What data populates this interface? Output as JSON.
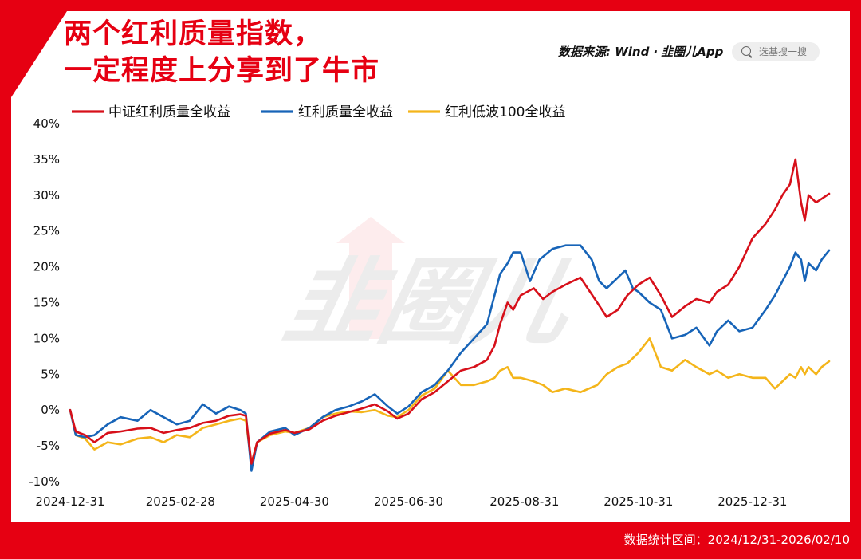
{
  "title_lines": [
    "两个红利质量指数，",
    "一定程度上分享到了牛市"
  ],
  "source": {
    "label": "数据来源: Wind ·",
    "brand": "韭圈儿App"
  },
  "search": {
    "placeholder": "选基搜一搜",
    "icon": "search-icon"
  },
  "watermark": "韭圈儿",
  "footer": "数据统计区间：2024/12/31-2026/02/10",
  "chart_data": {
    "type": "line",
    "ylim": [
      -10,
      40
    ],
    "yticks": [
      -10,
      -5,
      0,
      5,
      10,
      15,
      20,
      25,
      30,
      35,
      40
    ],
    "ytick_labels": [
      "-10%",
      "-5%",
      "0%",
      "5%",
      "10%",
      "15%",
      "20%",
      "25%",
      "30%",
      "35%",
      "40%"
    ],
    "xlim": [
      "2024-12-31",
      "2026-02-10"
    ],
    "xticks": [
      "2024-12-31",
      "2025-02-28",
      "2025-04-30",
      "2025-06-30",
      "2025-08-31",
      "2025-10-31",
      "2025-12-31"
    ],
    "grid": false,
    "legend_position": "top-left",
    "series": [
      {
        "name": "中证红利质量全收益",
        "color": "#d7101a",
        "points": [
          [
            "2024-12-31",
            0
          ],
          [
            "2025-01-03",
            -3
          ],
          [
            "2025-01-08",
            -3.5
          ],
          [
            "2025-01-13",
            -4.5
          ],
          [
            "2025-01-20",
            -3.2
          ],
          [
            "2025-01-27",
            -3
          ],
          [
            "2025-02-05",
            -2.6
          ],
          [
            "2025-02-12",
            -2.5
          ],
          [
            "2025-02-19",
            -3.2
          ],
          [
            "2025-02-26",
            -2.8
          ],
          [
            "2025-03-05",
            -2.5
          ],
          [
            "2025-03-12",
            -1.8
          ],
          [
            "2025-03-19",
            -1.5
          ],
          [
            "2025-03-26",
            -0.8
          ],
          [
            "2025-04-01",
            -0.6
          ],
          [
            "2025-04-04",
            -0.8
          ],
          [
            "2025-04-07",
            -7.5
          ],
          [
            "2025-04-10",
            -4.5
          ],
          [
            "2025-04-17",
            -3.3
          ],
          [
            "2025-04-25",
            -2.8
          ],
          [
            "2025-04-30",
            -3.2
          ],
          [
            "2025-05-08",
            -2.7
          ],
          [
            "2025-05-15",
            -1.5
          ],
          [
            "2025-05-22",
            -0.8
          ],
          [
            "2025-05-29",
            -0.3
          ],
          [
            "2025-06-05",
            0.2
          ],
          [
            "2025-06-12",
            0.8
          ],
          [
            "2025-06-19",
            -0.2
          ],
          [
            "2025-06-24",
            -1.2
          ],
          [
            "2025-06-30",
            -0.5
          ],
          [
            "2025-07-07",
            1.5
          ],
          [
            "2025-07-14",
            2.5
          ],
          [
            "2025-07-21",
            4.0
          ],
          [
            "2025-07-28",
            5.5
          ],
          [
            "2025-08-04",
            6.0
          ],
          [
            "2025-08-11",
            7.0
          ],
          [
            "2025-08-15",
            9.0
          ],
          [
            "2025-08-18",
            12
          ],
          [
            "2025-08-22",
            15
          ],
          [
            "2025-08-25",
            14
          ],
          [
            "2025-08-29",
            16
          ],
          [
            "2025-09-05",
            17
          ],
          [
            "2025-09-10",
            15.5
          ],
          [
            "2025-09-15",
            16.5
          ],
          [
            "2025-09-22",
            17.5
          ],
          [
            "2025-09-30",
            18.5
          ],
          [
            "2025-10-09",
            15
          ],
          [
            "2025-10-14",
            13
          ],
          [
            "2025-10-20",
            14
          ],
          [
            "2025-10-25",
            16
          ],
          [
            "2025-10-31",
            17.5
          ],
          [
            "2025-11-06",
            18.5
          ],
          [
            "2025-11-12",
            16
          ],
          [
            "2025-11-18",
            13
          ],
          [
            "2025-11-25",
            14.5
          ],
          [
            "2025-12-01",
            15.5
          ],
          [
            "2025-12-08",
            15
          ],
          [
            "2025-12-12",
            16.5
          ],
          [
            "2025-12-18",
            17.5
          ],
          [
            "2025-12-24",
            20
          ],
          [
            "2025-12-31",
            24
          ],
          [
            "2026-01-07",
            26
          ],
          [
            "2026-01-12",
            28
          ],
          [
            "2026-01-16",
            30
          ],
          [
            "2026-01-20",
            31.5
          ],
          [
            "2026-01-23",
            35
          ],
          [
            "2026-01-26",
            29
          ],
          [
            "2026-01-28",
            26.5
          ],
          [
            "2026-01-30",
            30
          ],
          [
            "2026-02-03",
            29
          ],
          [
            "2026-02-06",
            29.5
          ],
          [
            "2026-02-10",
            30.2
          ]
        ]
      },
      {
        "name": "红利质量全收益",
        "color": "#1764b8",
        "points": [
          [
            "2024-12-31",
            0
          ],
          [
            "2025-01-03",
            -3.5
          ],
          [
            "2025-01-08",
            -3.8
          ],
          [
            "2025-01-13",
            -3.5
          ],
          [
            "2025-01-20",
            -2
          ],
          [
            "2025-01-27",
            -1
          ],
          [
            "2025-02-05",
            -1.5
          ],
          [
            "2025-02-12",
            0
          ],
          [
            "2025-02-19",
            -1
          ],
          [
            "2025-02-26",
            -2
          ],
          [
            "2025-03-05",
            -1.5
          ],
          [
            "2025-03-12",
            0.8
          ],
          [
            "2025-03-19",
            -0.5
          ],
          [
            "2025-03-26",
            0.5
          ],
          [
            "2025-04-01",
            0
          ],
          [
            "2025-04-04",
            -0.5
          ],
          [
            "2025-04-07",
            -8.5
          ],
          [
            "2025-04-10",
            -4.5
          ],
          [
            "2025-04-17",
            -3
          ],
          [
            "2025-04-25",
            -2.5
          ],
          [
            "2025-04-30",
            -3.5
          ],
          [
            "2025-05-08",
            -2.5
          ],
          [
            "2025-05-15",
            -1
          ],
          [
            "2025-05-22",
            0
          ],
          [
            "2025-05-29",
            0.5
          ],
          [
            "2025-06-05",
            1.2
          ],
          [
            "2025-06-12",
            2.2
          ],
          [
            "2025-06-19",
            0.5
          ],
          [
            "2025-06-24",
            -0.5
          ],
          [
            "2025-06-30",
            0.5
          ],
          [
            "2025-07-07",
            2.5
          ],
          [
            "2025-07-14",
            3.5
          ],
          [
            "2025-07-21",
            5.5
          ],
          [
            "2025-07-28",
            8
          ],
          [
            "2025-08-04",
            10
          ],
          [
            "2025-08-11",
            12
          ],
          [
            "2025-08-15",
            16
          ],
          [
            "2025-08-18",
            19
          ],
          [
            "2025-08-22",
            20.5
          ],
          [
            "2025-08-25",
            22
          ],
          [
            "2025-08-29",
            22
          ],
          [
            "2025-09-03",
            18
          ],
          [
            "2025-09-08",
            21
          ],
          [
            "2025-09-15",
            22.5
          ],
          [
            "2025-09-22",
            23
          ],
          [
            "2025-09-30",
            23
          ],
          [
            "2025-10-06",
            21
          ],
          [
            "2025-10-10",
            18
          ],
          [
            "2025-10-14",
            17
          ],
          [
            "2025-10-20",
            18.5
          ],
          [
            "2025-10-24",
            19.5
          ],
          [
            "2025-10-28",
            17
          ],
          [
            "2025-10-31",
            16.5
          ],
          [
            "2025-11-06",
            15
          ],
          [
            "2025-11-12",
            14
          ],
          [
            "2025-11-18",
            10
          ],
          [
            "2025-11-25",
            10.5
          ],
          [
            "2025-12-01",
            11.5
          ],
          [
            "2025-12-08",
            9
          ],
          [
            "2025-12-12",
            11
          ],
          [
            "2025-12-18",
            12.5
          ],
          [
            "2025-12-24",
            11
          ],
          [
            "2025-12-31",
            11.5
          ],
          [
            "2026-01-07",
            14
          ],
          [
            "2026-01-12",
            16
          ],
          [
            "2026-01-16",
            18
          ],
          [
            "2026-01-20",
            20
          ],
          [
            "2026-01-23",
            22
          ],
          [
            "2026-01-26",
            21
          ],
          [
            "2026-01-28",
            18
          ],
          [
            "2026-01-30",
            20.5
          ],
          [
            "2026-02-03",
            19.5
          ],
          [
            "2026-02-06",
            21
          ],
          [
            "2026-02-10",
            22.3
          ]
        ]
      },
      {
        "name": "红利低波100全收益",
        "color": "#f4b51a",
        "points": [
          [
            "2024-12-31",
            0
          ],
          [
            "2025-01-03",
            -3.5
          ],
          [
            "2025-01-08",
            -4
          ],
          [
            "2025-01-13",
            -5.5
          ],
          [
            "2025-01-20",
            -4.5
          ],
          [
            "2025-01-27",
            -4.8
          ],
          [
            "2025-02-05",
            -4
          ],
          [
            "2025-02-12",
            -3.8
          ],
          [
            "2025-02-19",
            -4.5
          ],
          [
            "2025-02-26",
            -3.5
          ],
          [
            "2025-03-05",
            -3.8
          ],
          [
            "2025-03-12",
            -2.5
          ],
          [
            "2025-03-19",
            -2
          ],
          [
            "2025-03-26",
            -1.5
          ],
          [
            "2025-04-01",
            -1.2
          ],
          [
            "2025-04-04",
            -1.5
          ],
          [
            "2025-04-07",
            -7.5
          ],
          [
            "2025-04-10",
            -4.5
          ],
          [
            "2025-04-17",
            -3.5
          ],
          [
            "2025-04-25",
            -3
          ],
          [
            "2025-04-30",
            -3.2
          ],
          [
            "2025-05-08",
            -2.5
          ],
          [
            "2025-05-15",
            -1
          ],
          [
            "2025-05-22",
            -0.5
          ],
          [
            "2025-05-29",
            -0.2
          ],
          [
            "2025-06-05",
            -0.3
          ],
          [
            "2025-06-12",
            0
          ],
          [
            "2025-06-19",
            -0.8
          ],
          [
            "2025-06-24",
            -1
          ],
          [
            "2025-06-30",
            0
          ],
          [
            "2025-07-07",
            2
          ],
          [
            "2025-07-14",
            3
          ],
          [
            "2025-07-21",
            5.5
          ],
          [
            "2025-07-28",
            3.5
          ],
          [
            "2025-08-04",
            3.5
          ],
          [
            "2025-08-11",
            4
          ],
          [
            "2025-08-15",
            4.5
          ],
          [
            "2025-08-18",
            5.5
          ],
          [
            "2025-08-22",
            6
          ],
          [
            "2025-08-25",
            4.5
          ],
          [
            "2025-08-29",
            4.5
          ],
          [
            "2025-09-05",
            4
          ],
          [
            "2025-09-10",
            3.5
          ],
          [
            "2025-09-15",
            2.5
          ],
          [
            "2025-09-22",
            3
          ],
          [
            "2025-09-30",
            2.5
          ],
          [
            "2025-10-09",
            3.5
          ],
          [
            "2025-10-14",
            5
          ],
          [
            "2025-10-20",
            6
          ],
          [
            "2025-10-25",
            6.5
          ],
          [
            "2025-10-31",
            8
          ],
          [
            "2025-11-06",
            10
          ],
          [
            "2025-11-12",
            6
          ],
          [
            "2025-11-18",
            5.5
          ],
          [
            "2025-11-25",
            7
          ],
          [
            "2025-12-01",
            6
          ],
          [
            "2025-12-08",
            5
          ],
          [
            "2025-12-12",
            5.5
          ],
          [
            "2025-12-18",
            4.5
          ],
          [
            "2025-12-24",
            5
          ],
          [
            "2025-12-31",
            4.5
          ],
          [
            "2026-01-07",
            4.5
          ],
          [
            "2026-01-12",
            3
          ],
          [
            "2026-01-16",
            4
          ],
          [
            "2026-01-20",
            5
          ],
          [
            "2026-01-23",
            4.5
          ],
          [
            "2026-01-26",
            6
          ],
          [
            "2026-01-28",
            5
          ],
          [
            "2026-01-30",
            6
          ],
          [
            "2026-02-03",
            5
          ],
          [
            "2026-02-06",
            6
          ],
          [
            "2026-02-10",
            6.8
          ]
        ]
      }
    ]
  }
}
